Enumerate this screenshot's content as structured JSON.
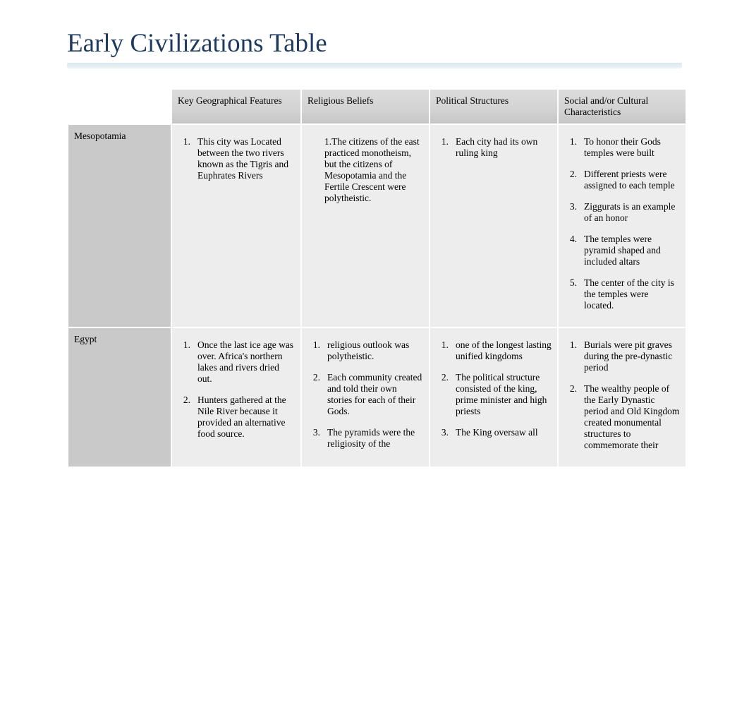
{
  "title": "Early Civilizations Table",
  "colors": {
    "title_color": "#1f3a5f",
    "underline_top": "#d9e8ee",
    "header_bg": "#d3d3d3",
    "rowlabel_bg": "#c9c9c9",
    "cell_bg": "#ededed"
  },
  "columns": [
    "",
    "Key Geographical Features",
    "Religious Beliefs",
    "Political Structures",
    "Social and/or Cultural Characteristics"
  ],
  "rows": [
    {
      "label": "Mesopotamia",
      "geo": [
        "This city was Located between the two rivers known as the Tigris and Euphrates Rivers"
      ],
      "geo_style": "ol",
      "religion_plain": "1.The citizens of the east practiced monotheism, but the citizens of Mesopotamia and the Fertile Crescent were polytheistic.",
      "political": [
        "Each city had its own ruling king"
      ],
      "social": [
        "To honor their Gods temples were built",
        "Different priests were assigned to each temple",
        "Ziggurats is an example of an honor",
        "The temples were pyramid shaped and included altars",
        "The center of the city is the temples were located."
      ]
    },
    {
      "label": "Egypt",
      "geo": [
        "Once the last ice age was over. Africa's northern lakes and rivers dried out.",
        "Hunters gathered at the Nile River because it provided an alternative food source."
      ],
      "religion": [
        "religious outlook was polytheistic.",
        "Each community created and told their own stories for each of their Gods.",
        "The pyramids were the religiosity of the"
      ],
      "political": [
        "one of the longest lasting unified kingdoms",
        "The political structure consisted of the king, prime minister and high priests",
        "The King oversaw all"
      ],
      "social": [
        "Burials were pit graves during the pre-dynastic period",
        "The wealthy people of the Early Dynastic period and Old Kingdom created monumental structures to commemorate their"
      ]
    }
  ]
}
